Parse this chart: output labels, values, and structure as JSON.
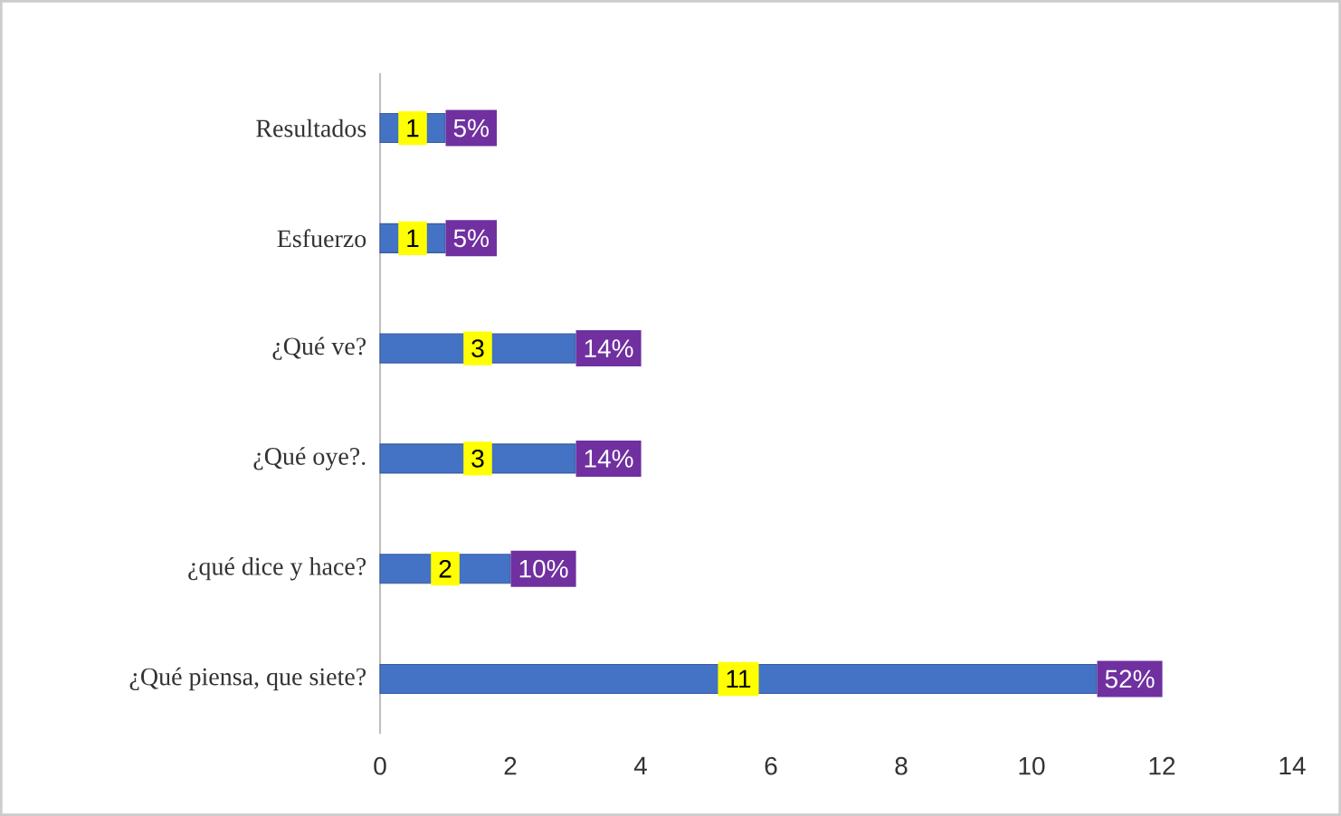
{
  "chart_data": {
    "type": "bar",
    "orientation": "horizontal",
    "categories": [
      "Resultados",
      "Esfuerzo",
      "¿Qué ve?",
      "¿Qué oye?.",
      "¿qué dice y hace?",
      "¿Qué piensa, que siete?"
    ],
    "values": [
      1,
      1,
      3,
      3,
      2,
      11
    ],
    "color": "#4472c4",
    "xlim": [
      0,
      14
    ],
    "xticks": [
      0,
      2,
      4,
      6,
      8,
      10,
      12,
      14
    ],
    "data_labels": true,
    "annotations": [
      {
        "text": "5%",
        "x": 1,
        "y": "Resultados"
      },
      {
        "text": "5%",
        "x": 1,
        "y": "Esfuerzo"
      },
      {
        "text": "14%",
        "x": 3,
        "y": "¿Qué ve?"
      },
      {
        "text": "14%",
        "x": 3,
        "y": "¿Qué oye?."
      },
      {
        "text": "10%",
        "x": 2,
        "y": "¿qué dice y hace?"
      },
      {
        "text": "52%",
        "x": 11,
        "y": "¿Qué piensa, que siete?"
      }
    ]
  }
}
